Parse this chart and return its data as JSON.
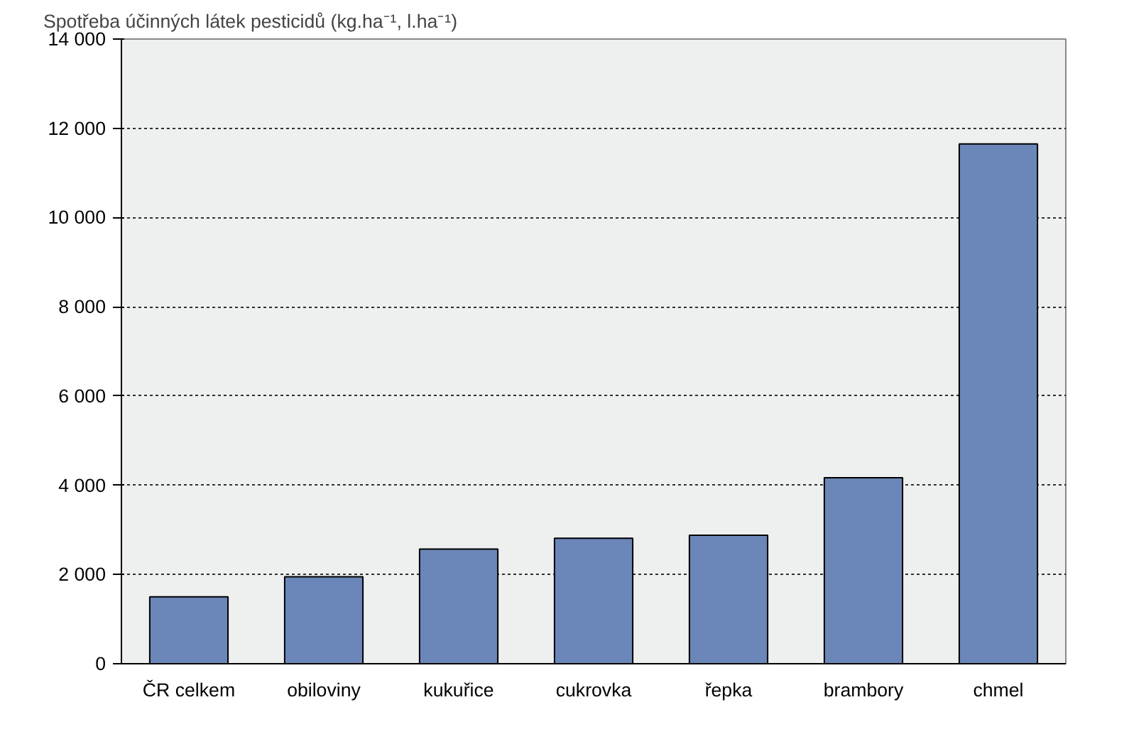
{
  "chart_data": {
    "type": "bar",
    "ylabel": "Spotřeba účinných látek pesticidů (kg.ha⁻¹,  l.ha⁻¹)",
    "categories": [
      "ČR celkem",
      "obiloviny",
      "kukuřice",
      "cukrovka",
      "řepka",
      "brambory",
      "chmel"
    ],
    "values": [
      1500,
      1950,
      2570,
      2810,
      2880,
      4170,
      11650
    ],
    "color": "#6b86b8",
    "ylim": [
      0,
      14000
    ],
    "yticks": [
      0,
      {
        "value": 2000,
        "label": "2 000"
      },
      {
        "value": 4000,
        "label": "4 000"
      },
      {
        "value": 6000,
        "label": "6 000"
      },
      {
        "value": 8000,
        "label": "8 000"
      },
      {
        "value": 10000,
        "label": "10 000"
      },
      {
        "value": 12000,
        "label": "12 000"
      },
      {
        "value": 14000,
        "label": "14 000"
      }
    ],
    "grid": "y"
  }
}
